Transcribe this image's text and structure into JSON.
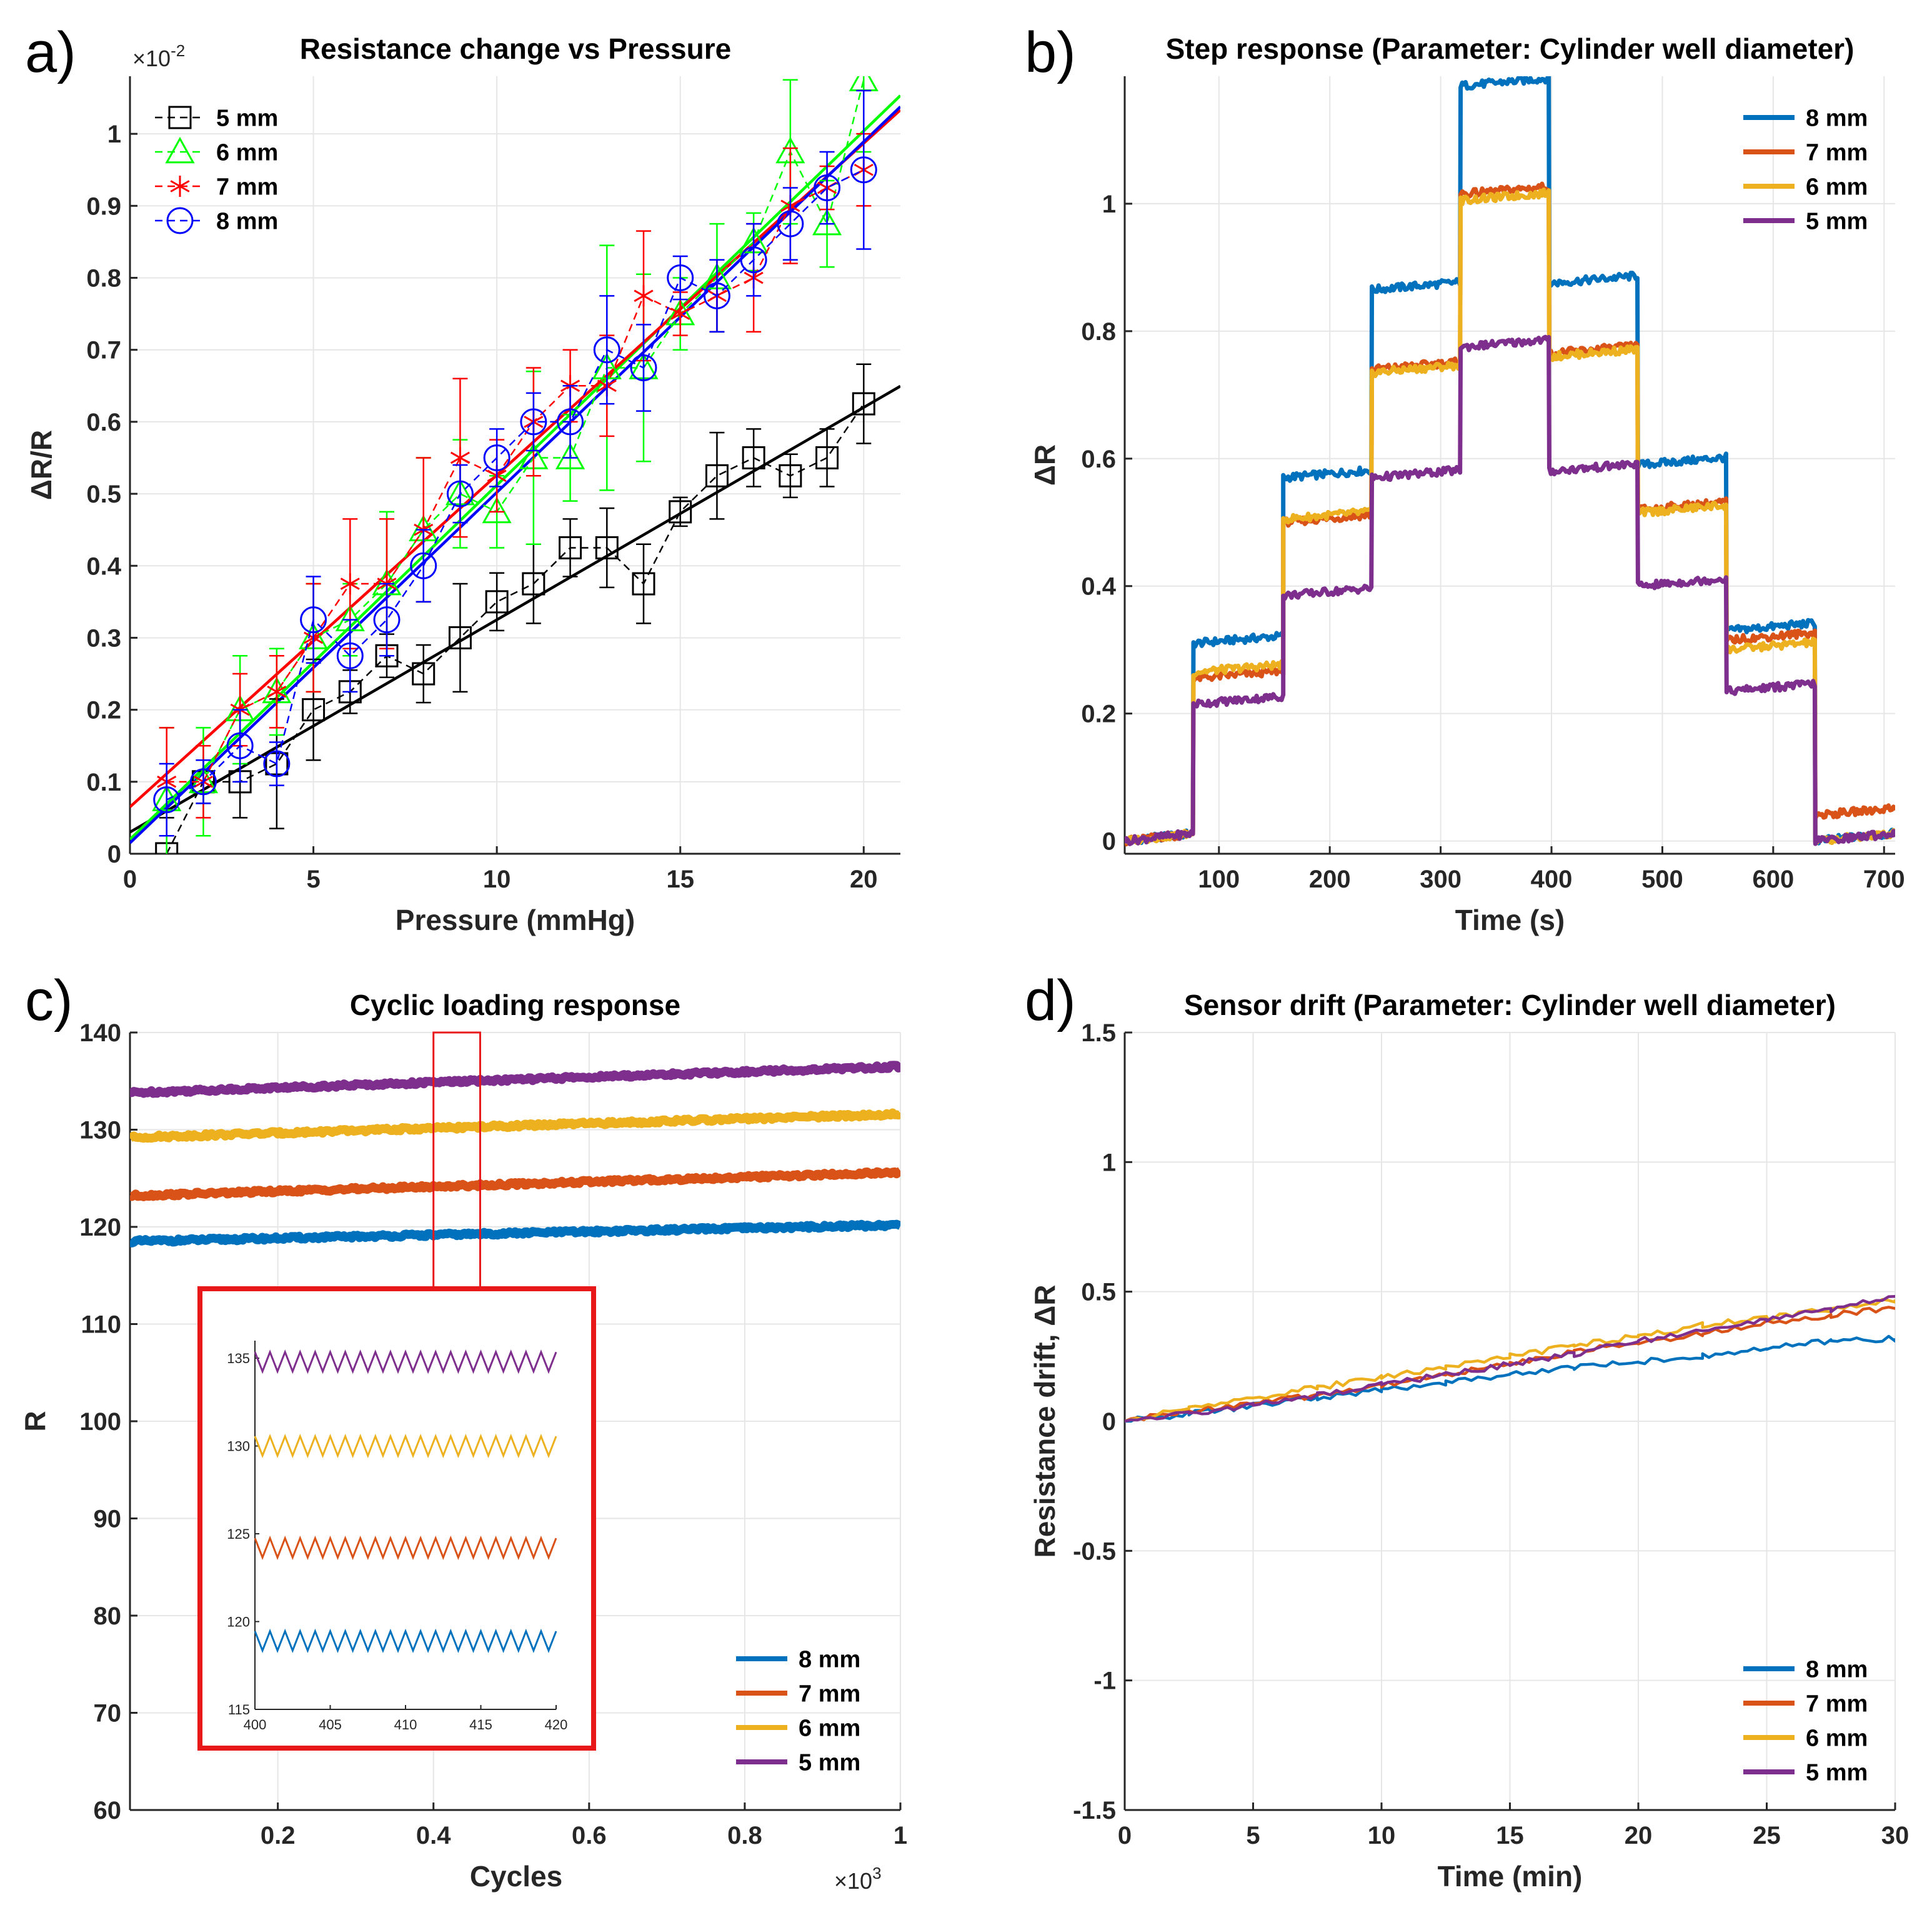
{
  "figure": {
    "panel_labels": [
      "a)",
      "b)",
      "c)",
      "d)"
    ]
  },
  "chart_data": [
    {
      "id": "a",
      "type": "scatter",
      "title": "Resistance change vs Pressure",
      "xlabel": "Pressure (mmHg)",
      "ylabel": "ΔR/R",
      "exponent_label": "×10",
      "exponent_power": "-2",
      "xlim": [
        0,
        21
      ],
      "ylim": [
        0,
        1.08
      ],
      "xticks": [
        0,
        5,
        10,
        15,
        20
      ],
      "xtick_labels": [
        "0",
        "5",
        "10",
        "15",
        "20"
      ],
      "yticks": [
        0,
        0.1,
        0.2,
        0.3,
        0.4,
        0.5,
        0.6,
        0.7,
        0.8,
        0.9,
        1
      ],
      "ytick_labels": [
        "0",
        "0.1",
        "0.2",
        "0.3",
        "0.4",
        "0.5",
        "0.6",
        "0.7",
        "0.8",
        "0.9",
        "1"
      ],
      "grid": true,
      "legend": "top-left",
      "x": [
        1,
        2,
        3,
        4,
        5,
        6,
        7,
        8,
        9,
        10,
        11,
        12,
        13,
        14,
        15,
        16,
        17,
        18,
        19,
        20
      ],
      "series": [
        {
          "name": "5 mm",
          "color": "#000000",
          "marker": "square",
          "values": [
            0.0,
            0.1,
            0.1,
            0.125,
            0.2,
            0.225,
            0.275,
            0.25,
            0.3,
            0.35,
            0.375,
            0.425,
            0.425,
            0.375,
            0.475,
            0.525,
            0.55,
            0.525,
            0.55,
            0.625
          ],
          "errors": [
            0.05,
            0.03,
            0.05,
            0.09,
            0.07,
            0.03,
            0.03,
            0.04,
            0.075,
            0.04,
            0.055,
            0.04,
            0.055,
            0.055,
            0.02,
            0.06,
            0.04,
            0.03,
            0.04,
            0.055
          ],
          "fit": [
            0.03,
            0.0295
          ]
        },
        {
          "name": "6 mm",
          "color": "#00ff00",
          "marker": "triangle",
          "values": [
            0.075,
            0.1,
            0.2,
            0.225,
            0.3,
            0.325,
            0.375,
            0.45,
            0.5,
            0.475,
            0.55,
            0.55,
            0.675,
            0.675,
            0.75,
            0.8,
            0.85,
            0.975,
            0.875,
            1.075
          ],
          "errors": [
            0.1,
            0.075,
            0.075,
            0.06,
            0.075,
            0.05,
            0.1,
            0.1,
            0.075,
            0.05,
            0.12,
            0.06,
            0.17,
            0.13,
            0.05,
            0.075,
            0.04,
            0.1,
            0.06,
            0.1
          ],
          "fit": [
            0.02,
            0.0492
          ]
        },
        {
          "name": "7 mm",
          "color": "#ff0000",
          "marker": "star",
          "values": [
            0.1,
            0.1,
            0.2,
            0.225,
            0.3,
            0.375,
            0.375,
            0.45,
            0.55,
            0.525,
            0.6,
            0.65,
            0.65,
            0.775,
            0.75,
            0.775,
            0.8,
            0.9,
            0.925,
            0.95
          ],
          "errors": [
            0.075,
            0.05,
            0.05,
            0.05,
            0.075,
            0.09,
            0.09,
            0.1,
            0.11,
            0.05,
            0.075,
            0.05,
            0.07,
            0.09,
            0.03,
            0.05,
            0.075,
            0.08,
            0.03,
            0.05
          ],
          "fit": [
            0.065,
            0.0461
          ]
        },
        {
          "name": "8 mm",
          "color": "#0000ff",
          "marker": "circle",
          "values": [
            0.075,
            0.1,
            0.15,
            0.125,
            0.325,
            0.275,
            0.325,
            0.4,
            0.5,
            0.55,
            0.6,
            0.6,
            0.7,
            0.675,
            0.8,
            0.775,
            0.825,
            0.875,
            0.925,
            0.95
          ],
          "errors": [
            0.05,
            0.03,
            0.05,
            0.03,
            0.06,
            0.05,
            0.05,
            0.05,
            0.04,
            0.04,
            0.04,
            0.05,
            0.075,
            0.06,
            0.03,
            0.05,
            0.05,
            0.05,
            0.05,
            0.11
          ],
          "fit": [
            0.015,
            0.0487
          ]
        }
      ]
    },
    {
      "id": "b",
      "type": "line",
      "title": "Step response (Parameter: Cylinder well diameter)",
      "xlabel": "Time (s)",
      "ylabel": "ΔR",
      "xlim": [
        15,
        710
      ],
      "ylim": [
        -0.02,
        1.2
      ],
      "xticks": [
        100,
        200,
        300,
        400,
        500,
        600,
        700
      ],
      "xtick_labels": [
        "100",
        "200",
        "300",
        "400",
        "500",
        "600",
        "700"
      ],
      "yticks": [
        0,
        0.2,
        0.4,
        0.6,
        0.8,
        1
      ],
      "ytick_labels": [
        "0",
        "0.2",
        "0.4",
        "0.6",
        "0.8",
        "1"
      ],
      "grid": true,
      "legend": "top-right",
      "step_edges": [
        15,
        77,
        158,
        238,
        318,
        398,
        478,
        558,
        638,
        710
      ],
      "series": [
        {
          "name": "8 mm",
          "color": "#0072bd",
          "levels": [
            0,
            0.31,
            0.57,
            0.865,
            1.185,
            0.875,
            0.59,
            0.33,
            0
          ]
        },
        {
          "name": "7 mm",
          "color": "#d95319",
          "levels": [
            0,
            0.255,
            0.5,
            0.74,
            1.015,
            0.765,
            0.52,
            0.315,
            0.04
          ]
        },
        {
          "name": "6 mm",
          "color": "#edb120",
          "levels": [
            0,
            0.265,
            0.505,
            0.735,
            1.005,
            0.76,
            0.515,
            0.3,
            0
          ]
        },
        {
          "name": "5 mm",
          "color": "#7e2f8e",
          "levels": [
            0,
            0.215,
            0.385,
            0.57,
            0.775,
            0.58,
            0.4,
            0.235,
            0
          ]
        }
      ]
    },
    {
      "id": "c",
      "type": "line",
      "title": "Cyclic loading response",
      "xlabel": "Cycles",
      "ylabel": "R",
      "exponent_label": "×10",
      "exponent_power": "3",
      "xlim": [
        0.01,
        1.0
      ],
      "ylim": [
        60,
        140
      ],
      "xticks": [
        0.2,
        0.4,
        0.6,
        0.8,
        1
      ],
      "xtick_labels": [
        "0.2",
        "0.4",
        "0.6",
        "0.8",
        "1"
      ],
      "yticks": [
        60,
        70,
        80,
        90,
        100,
        110,
        120,
        130,
        140
      ],
      "ytick_labels": [
        "60",
        "70",
        "80",
        "90",
        "100",
        "110",
        "120",
        "130",
        "140"
      ],
      "grid": true,
      "legend": "bottom-right",
      "series": [
        {
          "name": "8 mm",
          "color": "#0072bd",
          "start": 118.5,
          "end": 120.2
        },
        {
          "name": "7 mm",
          "color": "#d95319",
          "start": 123.2,
          "end": 125.6
        },
        {
          "name": "6 mm",
          "color": "#edb120",
          "start": 129.2,
          "end": 131.6
        },
        {
          "name": "5 mm",
          "color": "#7e2f8e",
          "start": 133.8,
          "end": 136.5
        }
      ],
      "zoom_window": {
        "x": [
          0.4,
          0.46
        ],
        "y": [
          113,
          140
        ]
      },
      "inset": {
        "xlim": [
          400,
          420
        ],
        "ylim": [
          115,
          136
        ],
        "xticks": [
          400,
          405,
          410,
          415,
          420
        ],
        "xtick_labels": [
          "400",
          "405",
          "410",
          "415",
          "420"
        ],
        "yticks": [
          115,
          120,
          125,
          130,
          135
        ],
        "ytick_labels": [
          "115",
          "120",
          "125",
          "130",
          "135"
        ],
        "cycles": 20,
        "series": [
          {
            "name": "8 mm",
            "color": "#0072bd",
            "center": 118.9,
            "amplitude": 0.55
          },
          {
            "name": "7 mm",
            "color": "#d95319",
            "center": 124.2,
            "amplitude": 0.55
          },
          {
            "name": "6 mm",
            "color": "#edb120",
            "center": 130.0,
            "amplitude": 0.55
          },
          {
            "name": "5 mm",
            "color": "#7e2f8e",
            "center": 134.8,
            "amplitude": 0.55
          }
        ]
      }
    },
    {
      "id": "d",
      "type": "line",
      "title": "Sensor drift (Parameter: Cylinder well diameter)",
      "xlabel": "Time (min)",
      "ylabel": "Resistance drift, ΔR",
      "xlim": [
        0,
        30
      ],
      "ylim": [
        -1.5,
        1.5
      ],
      "xticks": [
        0,
        5,
        10,
        15,
        20,
        25,
        30
      ],
      "xtick_labels": [
        "0",
        "5",
        "10",
        "15",
        "20",
        "25",
        "30"
      ],
      "yticks": [
        -1.5,
        -1,
        -0.5,
        0,
        0.5,
        1,
        1.5
      ],
      "ytick_labels": [
        "-1.5",
        "-1",
        "-0.5",
        "0",
        "0.5",
        "1",
        "1.5"
      ],
      "grid": true,
      "legend": "bottom-right",
      "x": [
        0,
        2.5,
        5,
        7.5,
        10,
        12.5,
        15,
        17.5,
        20,
        22.5,
        25,
        27.5,
        30
      ],
      "series": [
        {
          "name": "8 mm",
          "color": "#0072bd",
          "values": [
            0,
            0.03,
            0.06,
            0.09,
            0.12,
            0.15,
            0.18,
            0.21,
            0.23,
            0.25,
            0.28,
            0.31,
            0.32
          ]
        },
        {
          "name": "7 mm",
          "color": "#d95319",
          "values": [
            0,
            0.04,
            0.07,
            0.1,
            0.14,
            0.18,
            0.22,
            0.27,
            0.3,
            0.34,
            0.38,
            0.41,
            0.44
          ]
        },
        {
          "name": "6 mm",
          "color": "#edb120",
          "values": [
            0,
            0.05,
            0.09,
            0.13,
            0.17,
            0.21,
            0.25,
            0.29,
            0.33,
            0.37,
            0.4,
            0.43,
            0.47
          ]
        },
        {
          "name": "5 mm",
          "color": "#7e2f8e",
          "values": [
            0,
            0.03,
            0.06,
            0.1,
            0.14,
            0.18,
            0.22,
            0.26,
            0.31,
            0.35,
            0.39,
            0.43,
            0.48
          ]
        }
      ]
    }
  ]
}
